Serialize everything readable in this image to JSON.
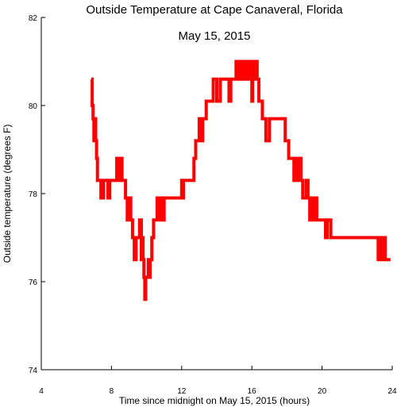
{
  "chart_data": {
    "type": "line",
    "title": "Outside Temperature at Cape Canaveral, Florida",
    "subtitle": "May 15, 2015",
    "xlabel": "Time since midnight on May 15, 2015 (hours)",
    "ylabel": "Outside temperature (degrees F)",
    "xlim": [
      4,
      24
    ],
    "ylim": [
      74,
      82
    ],
    "xticks": [
      4,
      8,
      12,
      16,
      20,
      24
    ],
    "yticks": [
      74,
      76,
      78,
      80,
      82
    ],
    "grid": false,
    "legend": "none",
    "line_color": "#ff0000",
    "series": [
      {
        "x": [
          6.85,
          6.9,
          6.95,
          7.0,
          7.05,
          7.1,
          7.15,
          7.2,
          7.25,
          7.3,
          7.4,
          7.45,
          7.5,
          7.55,
          7.6,
          7.7,
          7.8,
          7.9,
          8.0,
          8.1,
          8.2,
          8.3,
          8.4,
          8.5,
          8.6,
          8.7,
          8.8,
          8.9,
          9.0,
          9.1,
          9.2,
          9.3,
          9.4,
          9.5,
          9.6,
          9.7,
          9.75,
          9.8,
          9.85,
          9.9,
          9.95,
          10.0,
          10.1,
          10.15,
          10.2,
          10.3,
          10.4,
          10.5,
          10.6,
          10.7,
          10.8,
          10.9,
          11.0,
          11.5,
          11.9,
          12.0,
          12.05,
          12.1,
          12.2,
          12.3,
          12.5,
          12.7,
          12.8,
          12.9,
          13.0,
          13.1,
          13.2,
          13.4,
          13.5,
          13.7,
          13.8,
          13.9,
          14.0,
          14.2,
          14.4,
          14.6,
          14.7,
          14.8,
          15.0,
          15.1,
          15.2,
          15.3,
          15.4,
          15.5,
          15.6,
          15.7,
          15.8,
          15.9,
          16.0,
          16.05,
          16.1,
          16.2,
          16.3,
          16.4,
          16.5,
          16.6,
          16.7,
          16.8,
          17.0,
          17.2,
          17.5,
          17.8,
          17.9,
          18.0,
          18.1,
          18.2,
          18.3,
          18.4,
          18.5,
          18.6,
          18.7,
          18.8,
          18.9,
          19.0,
          19.1,
          19.2,
          19.3,
          19.4,
          19.5,
          19.6,
          19.7,
          19.8,
          19.9,
          20.0,
          20.1,
          20.2,
          20.3,
          20.5,
          20.7,
          20.9,
          21.0,
          21.1,
          21.2,
          21.3,
          21.5,
          22.0,
          22.5,
          23.0,
          23.2,
          23.3,
          23.4,
          23.5,
          23.6,
          23.7,
          23.8,
          23.9
        ],
        "y": [
          80.6,
          80.0,
          79.7,
          79.2,
          79.7,
          79.2,
          78.8,
          78.3,
          78.3,
          78.3,
          77.9,
          78.3,
          77.9,
          78.3,
          78.3,
          78.3,
          77.9,
          78.3,
          78.3,
          78.3,
          78.3,
          78.8,
          78.3,
          78.8,
          78.3,
          78.3,
          77.9,
          77.4,
          77.9,
          77.4,
          77.0,
          76.5,
          77.0,
          77.0,
          77.4,
          76.5,
          77.0,
          76.5,
          76.1,
          75.6,
          76.1,
          76.1,
          76.5,
          76.1,
          76.5,
          77.0,
          77.4,
          77.4,
          77.9,
          77.4,
          77.9,
          77.4,
          77.9,
          77.9,
          77.9,
          78.3,
          77.9,
          78.3,
          78.3,
          78.3,
          78.3,
          78.8,
          79.2,
          79.2,
          79.7,
          79.2,
          79.7,
          80.1,
          80.1,
          80.1,
          80.6,
          80.6,
          80.1,
          80.6,
          80.6,
          80.6,
          80.1,
          80.6,
          80.6,
          81.0,
          80.6,
          81.0,
          80.6,
          81.0,
          80.6,
          81.0,
          80.6,
          81.0,
          80.1,
          81.0,
          80.6,
          81.0,
          80.6,
          80.1,
          80.1,
          79.7,
          79.7,
          79.2,
          79.7,
          79.7,
          79.7,
          79.7,
          79.2,
          79.2,
          78.8,
          78.8,
          78.8,
          78.3,
          78.8,
          78.3,
          78.8,
          78.3,
          77.9,
          77.9,
          78.3,
          77.9,
          77.4,
          77.9,
          77.4,
          77.9,
          77.4,
          77.4,
          77.4,
          77.4,
          77.4,
          77.0,
          77.4,
          77.0,
          77.0,
          77.0,
          77.0,
          77.0,
          77.0,
          77.0,
          77.0,
          77.0,
          77.0,
          77.0,
          76.5,
          77.0,
          76.5,
          77.0,
          76.5,
          76.5,
          76.5,
          76.5
        ]
      }
    ]
  }
}
